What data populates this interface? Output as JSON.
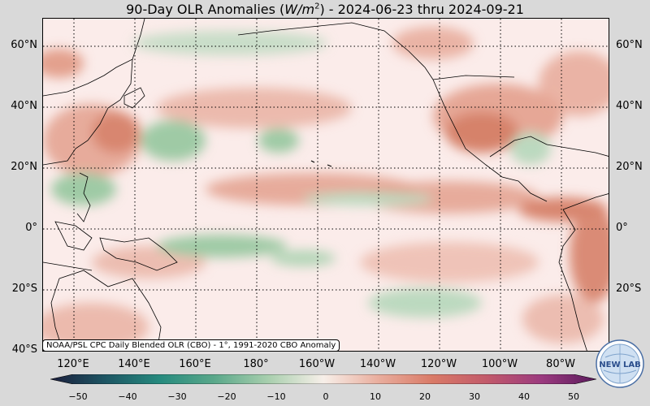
{
  "title_main": "90-Day OLR Anomalies (",
  "title_unit": "W/m",
  "title_exp": "2",
  "title_rest": ") - 2024-06-23 thru 2024-09-21",
  "lat_labels": [
    "60°N",
    "40°N",
    "20°N",
    "0°",
    "20°S",
    "40°S"
  ],
  "lon_labels": [
    "120°E",
    "140°E",
    "160°E",
    "180°",
    "160°W",
    "140°W",
    "120°W",
    "100°W",
    "80°W"
  ],
  "credit": "NOAA/PSL CPC Daily Blended OLR (CBO) - 1°, 1991-2020 CBO Anomaly",
  "colorbar": {
    "ticks": [
      "−50",
      "−40",
      "−30",
      "−20",
      "−10",
      "0",
      "10",
      "20",
      "30",
      "40",
      "50"
    ],
    "colors": [
      "#1c1e3c",
      "#1d5563",
      "#268a7e",
      "#5aa88a",
      "#a9cfae",
      "#f7efe9",
      "#e9ae9e",
      "#d97a67",
      "#c25a6b",
      "#9b3a7f",
      "#5a1a5c"
    ]
  },
  "logo_text": "NEW LAB",
  "colors": {
    "background": "#d9d9d9",
    "neutral": "#fbecea",
    "positive": "#e6a594",
    "negative": "#9fcaa5"
  }
}
